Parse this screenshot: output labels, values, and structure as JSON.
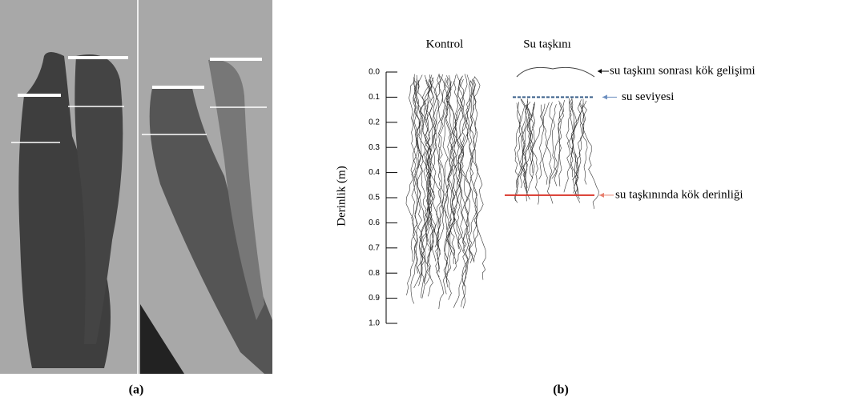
{
  "panel_a": {
    "caption": "(a)"
  },
  "panel_b": {
    "caption": "(b)",
    "columns": [
      "Kontrol",
      "Su taşkını"
    ],
    "y_axis": {
      "label": "Derinlik (m)",
      "ylim": [
        0,
        1
      ],
      "yticks": [
        {
          "value": 0,
          "label": "0.0"
        },
        {
          "value": 0.1,
          "label": "0.1"
        },
        {
          "value": 0.2,
          "label": "0.2"
        },
        {
          "value": 0.3,
          "label": "0.3"
        },
        {
          "value": 0.4,
          "label": "0.4"
        },
        {
          "value": 0.5,
          "label": "0.5"
        },
        {
          "value": 0.6,
          "label": "0.6"
        },
        {
          "value": 0.7,
          "label": "0.7"
        },
        {
          "value": 0.8,
          "label": "0.8"
        },
        {
          "value": 0.9,
          "label": "0.9"
        },
        {
          "value": 1,
          "label": "1.0"
        }
      ]
    },
    "regrowth": {
      "label": "su taşkını sonrası kök gelişimi"
    },
    "water_level": {
      "label": "su seviyesi",
      "depth": 0.1
    },
    "root_depth": {
      "label": "su taşkınında kök derinliği",
      "depth": 0.49
    }
  }
}
